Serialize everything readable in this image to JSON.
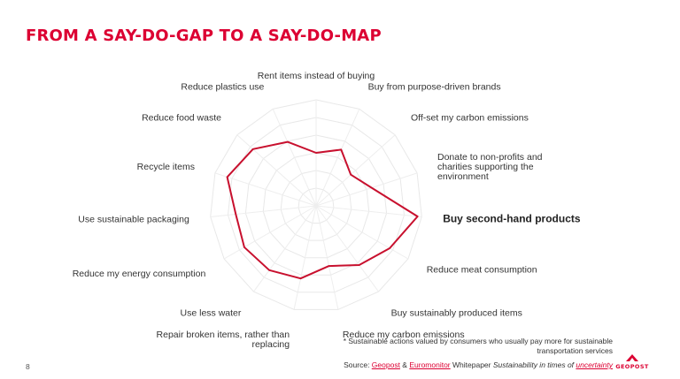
{
  "slide": {
    "title": "FROM A SAY-DO-GAP TO A SAY-DO-MAP",
    "page_number": "8",
    "footnote": "* Sustainable actions valued by consumers who usually pay more for sustainable transportation services",
    "source": {
      "prefix": "Source: ",
      "org1": "Geopost",
      "amp": " & ",
      "org2": "Euromonitor",
      "mid": " Whitepaper ",
      "title_a": "Sustainability in times of ",
      "title_b": "uncertainty"
    },
    "logo": {
      "text": "GEOPOST",
      "icon": "geopost-arrow-icon"
    }
  },
  "colors": {
    "accent": "#dc0032",
    "series": "#c8102e"
  },
  "chart_data": {
    "type": "radar",
    "title": "",
    "highlighted_category": "Buy second-hand products",
    "categories": [
      "Rent items instead of buying",
      "Buy from purpose-driven brands",
      "Off-set my carbon emissions",
      "Donate to non-profits and charities supporting the environment",
      "Buy second-hand products",
      "Reduce meat consumption",
      "Buy sustainably produced items",
      "Reduce my carbon emissions",
      "Repair broken items, rather than replacing",
      "Use less water",
      "Reduce my energy consumption",
      "Use sustainable packaging",
      "Recycle items",
      "Reduce food waste",
      "Reduce plastics use"
    ],
    "series": [
      {
        "values": [
          0.5,
          0.58,
          0.44,
          0.55,
          0.96,
          0.8,
          0.69,
          0.58,
          0.7,
          0.75,
          0.78,
          0.76,
          0.88,
          0.8,
          0.66
        ]
      }
    ],
    "r_range": [
      0,
      1
    ],
    "rings": 6,
    "grid": true,
    "legend": false
  }
}
